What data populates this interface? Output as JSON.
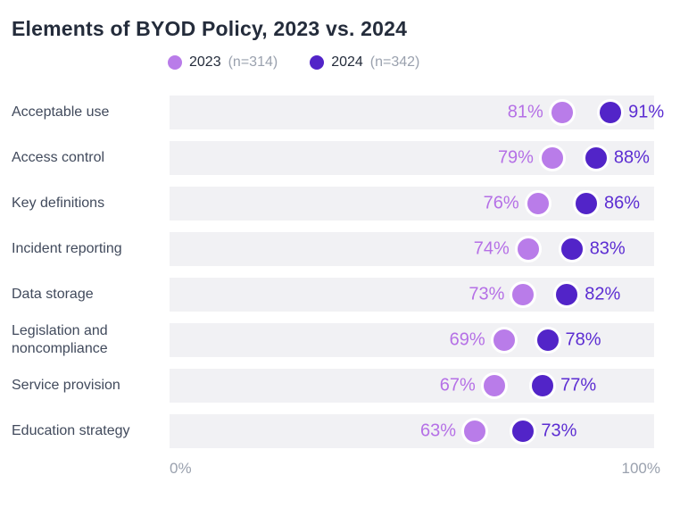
{
  "title": "Elements of BYOD Policy, 2023 vs. 2024",
  "legend": [
    {
      "label": "2023",
      "n_label": "(n=314)"
    },
    {
      "label": "2024",
      "n_label": "(n=342)"
    }
  ],
  "axis": {
    "min_label": "0%",
    "max_label": "100%"
  },
  "colors": {
    "dot_2023": "#b97ce9",
    "dot_2024": "#5224c8",
    "value_text_2023": "#b570e6",
    "value_text_2024": "#5c2dd2",
    "track": "#f1f1f4",
    "title_text": "#242c3b",
    "category_text": "#414a5c",
    "muted_text": "#9aa1ae"
  },
  "chart_data": {
    "type": "scatter",
    "subtype": "dot-plot",
    "title": "Elements of BYOD Policy, 2023 vs. 2024",
    "categories": [
      "Acceptable use",
      "Access control",
      "Key definitions",
      "Incident reporting",
      "Data storage",
      "Legislation and noncompliance",
      "Service provision",
      "Education strategy"
    ],
    "series": [
      {
        "name": "2023",
        "n": 314,
        "values": [
          81,
          79,
          76,
          74,
          73,
          69,
          67,
          63
        ]
      },
      {
        "name": "2024",
        "n": 342,
        "values": [
          91,
          88,
          86,
          83,
          82,
          78,
          77,
          73
        ]
      }
    ],
    "value_suffix": "%",
    "xlabel": "",
    "ylabel": "",
    "xlim": [
      0,
      100
    ],
    "xticklabels": [
      "0%",
      "100%"
    ],
    "grid": false,
    "legend_position": "top"
  }
}
